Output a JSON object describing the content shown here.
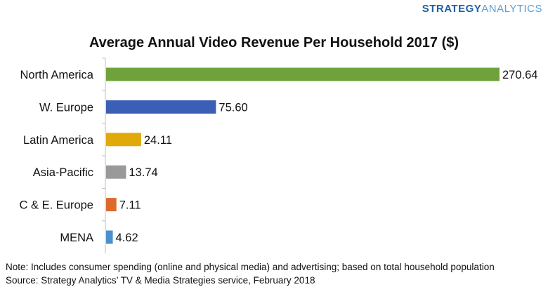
{
  "brand": {
    "part1": "STRATEGY",
    "part2": "ANALYTICS"
  },
  "chart_data": {
    "type": "bar",
    "orientation": "horizontal",
    "title": "Average Annual Video Revenue Per Household 2017 ($)",
    "categories": [
      "North America",
      "W. Europe",
      "Latin America",
      "Asia-Pacific",
      "C & E. Europe",
      "MENA"
    ],
    "values": [
      270.64,
      75.6,
      24.11,
      13.74,
      7.11,
      4.62
    ],
    "value_labels": [
      "270.64",
      "75.60",
      "24.11",
      "13.74",
      "7.11",
      "4.62"
    ],
    "colors": [
      "#70a23c",
      "#3b5fb4",
      "#e0aa0a",
      "#999999",
      "#dc6a2c",
      "#4a90cc"
    ],
    "xlim": [
      0,
      270.64
    ],
    "grid": false,
    "legend": "none"
  },
  "notes": {
    "note": "Note: Includes consumer spending (online and physical media) and advertising; based on total household population",
    "source": "Source: Strategy Analytics’ TV & Media  Strategies  service, February 2018"
  }
}
